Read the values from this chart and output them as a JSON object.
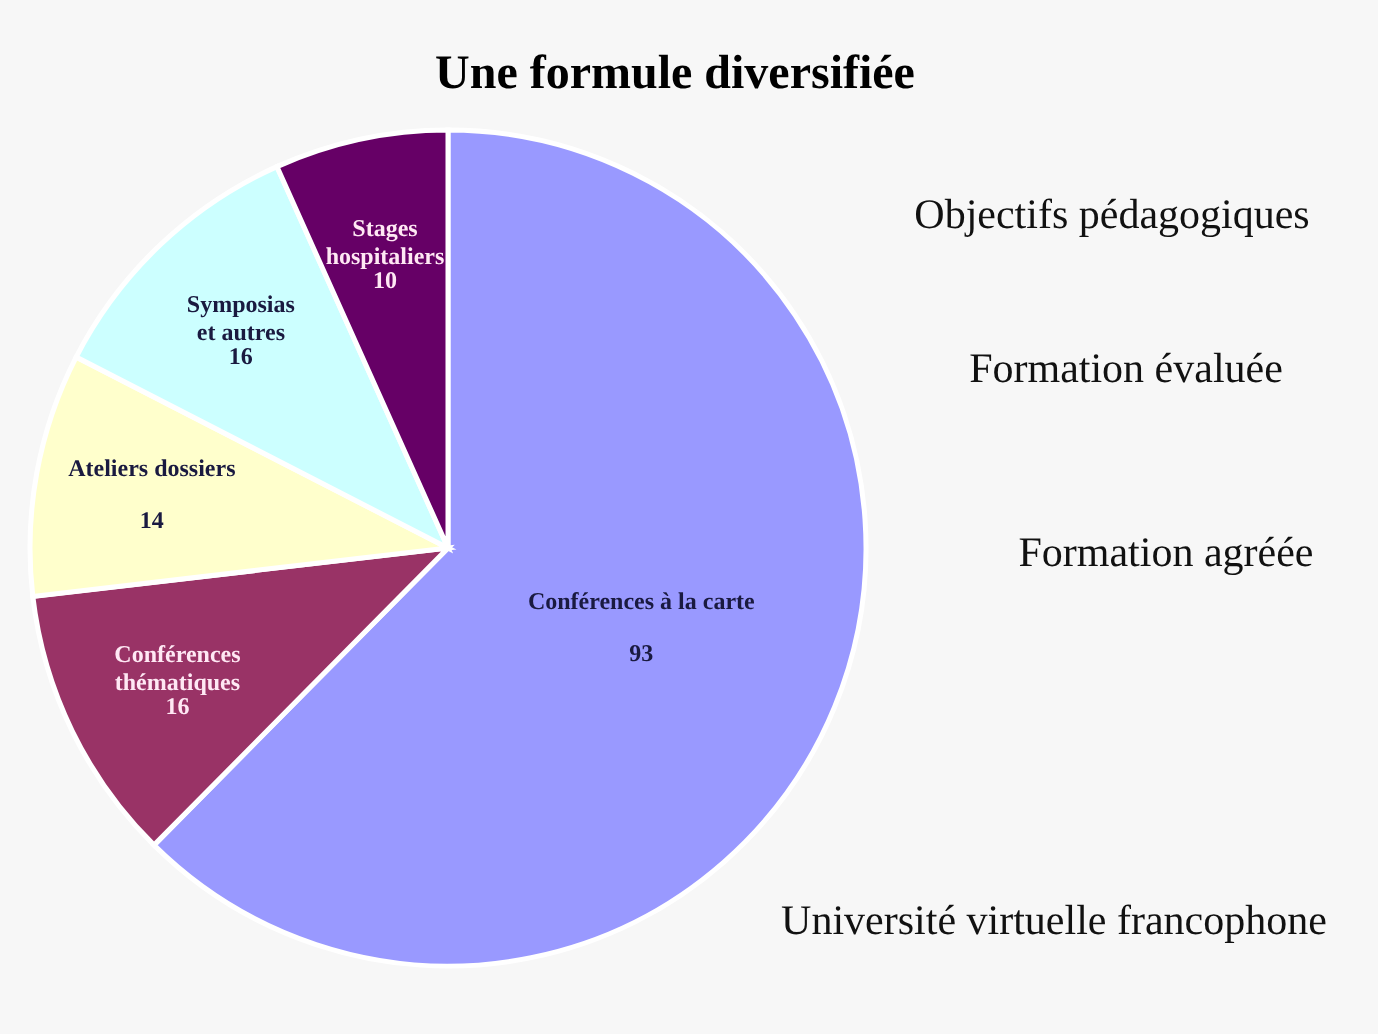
{
  "chart_data": {
    "type": "pie",
    "title": "Une formule diversifiée",
    "categories": [
      "Conférences à la carte",
      "Conférences thématiques",
      "Ateliers dossiers",
      "Symposias et autres",
      "Stages hospitaliers"
    ],
    "values": [
      93,
      16,
      14,
      16,
      10
    ],
    "colors": [
      "#9999ff",
      "#993366",
      "#ffffcc",
      "#ccffff",
      "#660066"
    ],
    "data_labels": true,
    "legend": false,
    "annotations": [
      "Objectifs pédagogiques",
      "Formation évaluée",
      "Formation agréée",
      "Université virtuelle  francophone"
    ]
  }
}
